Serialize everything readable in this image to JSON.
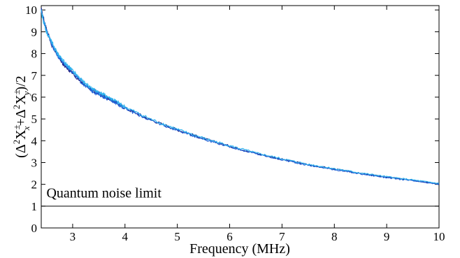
{
  "chart_data": {
    "type": "line",
    "title": "",
    "xlabel": "Frequency (MHz)",
    "ylabel": "(Δ²X±x+Δ²X±y)/2",
    "ylabel_parts": {
      "open": "(Δ",
      "sup1": "2",
      "X1": "X",
      "pm1": "±",
      "sub1": "x",
      "plus": "+Δ",
      "sup2": "2",
      "X2": "X",
      "pm2": "±",
      "sub2": "y",
      "close": ")/2"
    },
    "xlim": [
      2.4,
      10
    ],
    "ylim": [
      0,
      10.2
    ],
    "xticks": [
      "3",
      "4",
      "5",
      "6",
      "7",
      "8",
      "9",
      "10"
    ],
    "yticks": [
      "0",
      "1",
      "2",
      "3",
      "4",
      "5",
      "6",
      "7",
      "8",
      "9",
      "10"
    ],
    "grid": false,
    "annotations": [
      {
        "text": "Quantum noise limit",
        "x": 2.5,
        "y": 1.4
      }
    ],
    "reference_line": {
      "y": 1
    },
    "series": [
      {
        "color": "#1a1a80",
        "x": [
          2.4,
          2.5,
          2.6,
          2.7,
          2.8,
          3.0,
          3.2,
          3.4,
          3.6,
          3.8,
          4.0,
          4.5,
          5.0,
          5.5,
          6.0,
          6.5,
          7.0,
          7.5,
          8.0,
          8.5,
          9.0,
          9.5,
          10.0
        ],
        "y": [
          10.0,
          9.1,
          8.4,
          8.0,
          7.6,
          7.1,
          6.6,
          6.3,
          6.05,
          5.8,
          5.5,
          4.95,
          4.5,
          4.1,
          3.75,
          3.42,
          3.15,
          2.9,
          2.7,
          2.5,
          2.33,
          2.18,
          2.03
        ]
      },
      {
        "color": "#1f5fd6",
        "x": [
          2.4,
          2.5,
          2.6,
          2.7,
          2.8,
          3.0,
          3.2,
          3.4,
          3.6,
          3.8,
          4.0,
          4.5,
          5.0,
          5.5,
          6.0,
          6.5,
          7.0,
          7.5,
          8.0,
          8.5,
          9.0,
          9.5,
          10.0
        ],
        "y": [
          9.95,
          9.05,
          8.45,
          7.95,
          7.65,
          7.15,
          6.6,
          6.25,
          6.0,
          5.78,
          5.48,
          4.92,
          4.48,
          4.08,
          3.73,
          3.4,
          3.13,
          2.88,
          2.68,
          2.48,
          2.31,
          2.16,
          2.0
        ]
      },
      {
        "color": "#2fb2ee",
        "x": [
          2.4,
          2.5,
          2.6,
          2.7,
          2.8,
          3.0,
          3.2,
          3.4,
          3.6,
          3.8,
          4.0,
          4.5,
          5.0,
          5.5,
          6.0,
          6.5,
          7.0,
          7.5,
          8.0,
          8.5,
          9.0,
          9.5,
          10.0
        ],
        "y": [
          9.9,
          9.0,
          8.5,
          8.05,
          7.7,
          7.2,
          6.7,
          6.35,
          6.1,
          5.85,
          5.55,
          4.98,
          4.52,
          4.12,
          3.77,
          3.44,
          3.17,
          2.92,
          2.72,
          2.52,
          2.35,
          2.2,
          2.04
        ]
      }
    ]
  }
}
